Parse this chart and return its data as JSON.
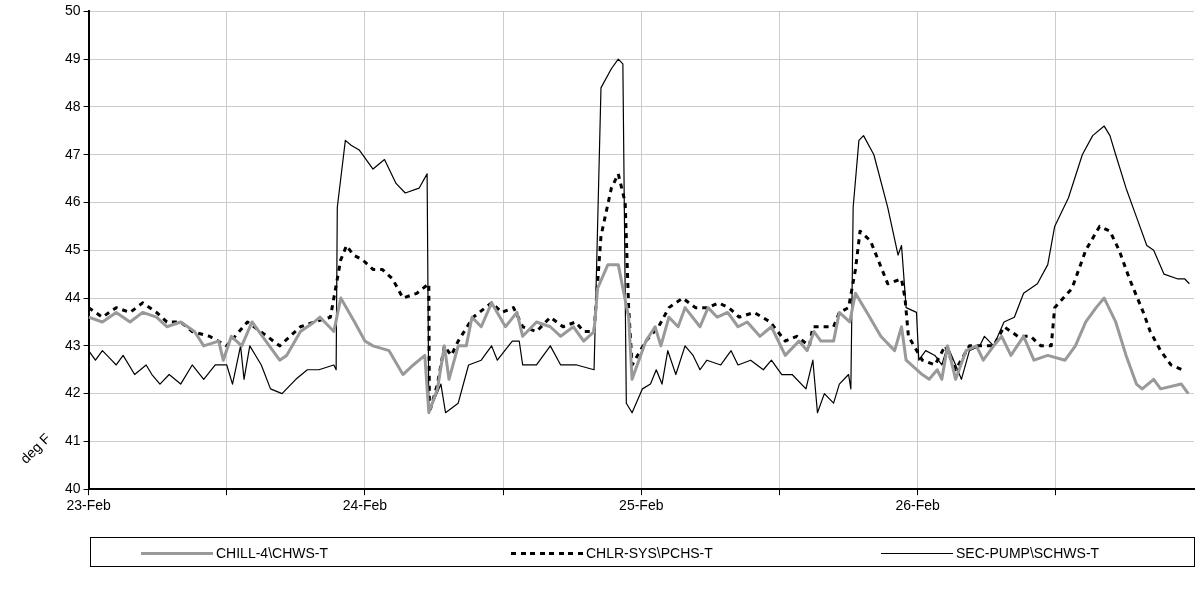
{
  "chart_data": {
    "type": "line",
    "ylabel": "deg F",
    "xlim": [
      "--02-23",
      "--02-27"
    ],
    "xticks": [
      {
        "value": "--02-23",
        "label": "23-Feb"
      },
      {
        "value": "--02-23T12:00",
        "label": null
      },
      {
        "value": "--02-24",
        "label": "24-Feb"
      },
      {
        "value": "--02-24T12:00",
        "label": null
      },
      {
        "value": "--02-25",
        "label": "25-Feb"
      },
      {
        "value": "--02-25T12:00",
        "label": null
      },
      {
        "value": "--02-26",
        "label": "26-Feb"
      },
      {
        "value": "--02-26T12:00",
        "label": null
      }
    ],
    "ylim": [
      40,
      50
    ],
    "yticks": [
      40,
      41,
      42,
      43,
      44,
      45,
      46,
      47,
      48,
      49,
      50
    ],
    "grid": true,
    "legend": "bottom",
    "marker": "none",
    "series": [
      {
        "name": "CHILL-4\\CHWS-T",
        "color": "#999999",
        "line_style": "solid",
        "x": [
          "--02-23T00:00",
          "--02-23T01:12",
          "--02-23T02:24",
          "--02-23T03:36",
          "--02-23T04:42",
          "--02-23T05:54",
          "--02-23T06:48",
          "--02-23T08:00",
          "--02-23T09:12",
          "--02-23T10:00",
          "--02-23T11:18",
          "--02-23T11:42",
          "--02-23T12:24",
          "--02-23T13:18",
          "--02-23T14:12",
          "--02-23T15:24",
          "--02-23T16:36",
          "--02-23T17:12",
          "--02-23T18:24",
          "--02-23T19:36",
          "--02-23T20:06",
          "--02-23T21:18",
          "--02-23T21:54",
          "--02-23T23:06",
          "--02-24T00:00",
          "--02-24T00:42",
          "--02-24T02:06",
          "--02-24T03:18",
          "--02-24T04:12",
          "--02-24T05:12",
          "--02-24T05:33",
          "--02-24T06:18",
          "--02-24T06:54",
          "--02-24T07:18",
          "--02-24T08:06",
          "--02-24T08:48",
          "--02-24T09:18",
          "--02-24T10:06",
          "--02-24T11:00",
          "--02-24T12:12",
          "--02-24T13:12",
          "--02-24T13:42",
          "--02-24T14:54",
          "--02-24T16:06",
          "--02-24T17:00",
          "--02-24T18:06",
          "--02-24T19:00",
          "--02-24T19:54",
          "--02-24T20:12",
          "--02-24T21:06",
          "--02-24T22:00",
          "--02-24T22:54",
          "--02-24T23:12",
          "--02-25T00:24",
          "--02-25T01:12",
          "--02-25T01:42",
          "--02-25T02:24",
          "--02-25T03:12",
          "--02-25T03:48",
          "--02-25T05:06",
          "--02-25T05:48",
          "--02-25T06:36",
          "--02-25T07:30",
          "--02-25T08:24",
          "--02-25T09:12",
          "--02-25T10:18",
          "--02-25T11:18",
          "--02-25T12:30",
          "--02-25T13:42",
          "--02-25T14:24",
          "--02-25T15:00",
          "--02-25T15:36",
          "--02-25T16:42",
          "--02-25T17:12",
          "--02-25T18:06",
          "--02-25T18:36",
          "--02-25T19:36",
          "--02-25T20:48",
          "--02-25T22:00",
          "--02-25T22:36",
          "--02-25T23:00",
          "--02-26T00:24",
          "--02-26T01:00",
          "--02-26T01:42",
          "--02-26T02:06",
          "--02-26T02:36",
          "--02-26T03:18",
          "--02-26T04:12",
          "--02-26T05:06",
          "--02-26T05:42",
          "--02-26T06:36",
          "--02-26T07:18",
          "--02-26T08:06",
          "--02-26T09:12",
          "--02-26T10:06",
          "--02-26T11:18",
          "--02-26T12:48",
          "--02-26T13:42",
          "--02-26T14:36",
          "--02-26T15:30",
          "--02-26T16:12",
          "--02-26T17:12",
          "--02-26T18:06",
          "--02-26T19:00",
          "--02-26T19:30",
          "--02-26T20:30",
          "--02-26T21:06",
          "--02-26T22:54",
          "--02-26T23:30"
        ],
        "values": [
          43.6,
          43.5,
          43.7,
          43.5,
          43.7,
          43.6,
          43.4,
          43.5,
          43.3,
          43.0,
          43.1,
          42.7,
          43.2,
          43.0,
          43.5,
          43.1,
          42.7,
          42.8,
          43.3,
          43.5,
          43.6,
          43.3,
          44.0,
          43.5,
          43.1,
          43.0,
          42.9,
          42.4,
          42.6,
          42.8,
          41.6,
          42.1,
          43.0,
          42.3,
          43.0,
          43.0,
          43.6,
          43.4,
          43.9,
          43.4,
          43.7,
          43.2,
          43.5,
          43.4,
          43.2,
          43.4,
          43.1,
          43.3,
          44.2,
          44.7,
          44.7,
          43.6,
          42.3,
          43.1,
          43.4,
          43.0,
          43.6,
          43.4,
          43.8,
          43.4,
          43.8,
          43.6,
          43.7,
          43.4,
          43.5,
          43.2,
          43.4,
          42.8,
          43.1,
          42.9,
          43.3,
          43.1,
          43.1,
          43.7,
          43.5,
          44.1,
          43.7,
          43.2,
          42.9,
          43.4,
          42.7,
          42.4,
          42.3,
          42.5,
          42.3,
          43.0,
          42.3,
          42.9,
          43.0,
          42.7,
          43.0,
          43.2,
          42.8,
          43.2,
          42.7,
          42.8,
          42.7,
          43.0,
          43.5,
          43.8,
          44.0,
          43.5,
          42.8,
          42.2,
          42.1,
          42.3,
          42.1,
          42.2,
          42.0
        ]
      },
      {
        "name": "CHLR-SYS\\PCHS-T",
        "color": "#000000",
        "line_style": "dashed",
        "x": [
          "--02-23T00:00",
          "--02-23T01:12",
          "--02-23T02:24",
          "--02-23T03:36",
          "--02-23T04:42",
          "--02-23T05:54",
          "--02-23T06:48",
          "--02-23T08:00",
          "--02-23T09:00",
          "--02-23T10:30",
          "--02-23T12:00",
          "--02-23T13:48",
          "--02-23T15:30",
          "--02-23T16:36",
          "--02-23T18:24",
          "--02-23T19:36",
          "--02-23T21:00",
          "--02-23T21:54",
          "--02-23T22:24",
          "--02-23T23:00",
          "--02-23T23:48",
          "--02-24T00:42",
          "--02-24T01:30",
          "--02-24T02:24",
          "--02-24T03:18",
          "--02-24T04:30",
          "--02-24T05:33",
          "--02-24T05:36",
          "--02-24T06:18",
          "--02-24T06:54",
          "--02-24T07:30",
          "--02-24T08:06",
          "--02-24T09:24",
          "--02-24T11:00",
          "--02-24T11:54",
          "--02-24T12:54",
          "--02-24T13:42",
          "--02-24T14:54",
          "--02-24T16:06",
          "--02-24T17:12",
          "--02-24T18:18",
          "--02-24T19:00",
          "--02-24T19:54",
          "--02-24T20:30",
          "--02-24T21:24",
          "--02-24T22:00",
          "--02-24T22:36",
          "--02-24T22:54",
          "--02-24T23:12",
          "--02-25T00:24",
          "--02-25T01:30",
          "--02-25T02:24",
          "--02-25T03:36",
          "--02-25T04:42",
          "--02-25T05:48",
          "--02-25T06:42",
          "--02-25T07:36",
          "--02-25T08:30",
          "--02-25T09:48",
          "--02-25T11:12",
          "--02-25T12:30",
          "--02-25T13:30",
          "--02-25T14:36",
          "--02-25T14:54",
          "--02-25T15:36",
          "--02-25T16:42",
          "--02-25T17:12",
          "--02-25T18:00",
          "--02-25T18:36",
          "--02-25T19:00",
          "--02-25T19:54",
          "--02-25T21:24",
          "--02-25T22:36",
          "--02-25T22:54",
          "--02-25T23:12",
          "--02-26T00:24",
          "--02-26T01:30",
          "--02-26T02:24",
          "--02-26T03:18",
          "--02-26T04:30",
          "--02-26T06:36",
          "--02-26T07:30",
          "--02-26T08:42",
          "--02-26T09:48",
          "--02-26T10:42",
          "--02-26T11:36",
          "--02-26T11:54",
          "--02-26T13:24",
          "--02-26T14:36",
          "--02-26T15:48",
          "--02-26T16:42",
          "--02-26T17:30",
          "--02-26T18:24",
          "--02-26T19:36",
          "--02-26T20:12",
          "--02-26T21:06",
          "--02-26T22:00",
          "--02-26T23:00"
        ],
        "values": [
          43.8,
          43.6,
          43.8,
          43.7,
          43.9,
          43.7,
          43.5,
          43.5,
          43.3,
          43.2,
          43.0,
          43.5,
          43.2,
          43.0,
          43.4,
          43.5,
          43.6,
          44.8,
          45.1,
          44.9,
          44.8,
          44.6,
          44.6,
          44.4,
          44.0,
          44.1,
          44.3,
          41.6,
          42.2,
          43.0,
          42.8,
          43.1,
          43.6,
          43.9,
          43.7,
          43.8,
          43.4,
          43.3,
          43.6,
          43.4,
          43.5,
          43.3,
          43.3,
          45.3,
          46.3,
          46.6,
          46.0,
          43.8,
          42.6,
          43.1,
          43.4,
          43.8,
          44.0,
          43.8,
          43.8,
          43.9,
          43.8,
          43.6,
          43.7,
          43.5,
          43.1,
          43.2,
          43.0,
          43.4,
          43.4,
          43.4,
          43.7,
          43.8,
          44.6,
          45.4,
          45.2,
          44.3,
          44.4,
          44.0,
          43.2,
          42.7,
          42.6,
          43.0,
          42.5,
          43.0,
          43.0,
          43.4,
          43.2,
          43.2,
          43.0,
          43.0,
          43.8,
          44.2,
          45.0,
          45.5,
          45.4,
          45.0,
          44.4,
          43.7,
          43.3,
          42.9,
          42.6,
          42.5
        ]
      },
      {
        "name": "SEC-PUMP\\SCHWS-T",
        "color": "#000000",
        "line_style": "solid",
        "x": [
          "--02-23T00:00",
          "--02-23T00:36",
          "--02-23T01:12",
          "--02-23T02:00",
          "--02-23T02:24",
          "--02-23T03:00",
          "--02-23T04:00",
          "--02-23T05:00",
          "--02-23T05:30",
          "--02-23T06:12",
          "--02-23T07:00",
          "--02-23T08:00",
          "--02-23T09:00",
          "--02-23T10:00",
          "--02-23T11:00",
          "--02-23T12:00",
          "--02-23T12:30",
          "--02-23T13:12",
          "--02-23T13:30",
          "--02-23T14:00",
          "--02-23T15:00",
          "--02-23T15:48",
          "--02-23T16:48",
          "--02-23T18:00",
          "--02-23T19:00",
          "--02-23T20:00",
          "--02-23T21:18",
          "--02-23T21:30",
          "--02-23T21:36",
          "--02-23T22:18",
          "--02-23T22:48",
          "--02-23T23:30",
          "--02-24T00:42",
          "--02-24T01:42",
          "--02-24T02:42",
          "--02-24T03:30",
          "--02-24T04:42",
          "--02-24T05:24",
          "--02-24T05:33",
          "--02-24T06:36",
          "--02-24T07:00",
          "--02-24T08:06",
          "--02-24T09:00",
          "--02-24T10:06",
          "--02-24T11:00",
          "--02-24T11:30",
          "--02-24T12:48",
          "--02-24T13:24",
          "--02-24T13:42",
          "--02-24T14:54",
          "--02-24T16:06",
          "--02-24T17:00",
          "--02-24T18:24",
          "--02-24T19:54",
          "--02-24T20:30",
          "--02-24T21:24",
          "--02-24T22:00",
          "--02-24T22:24",
          "--02-24T22:42",
          "--02-24T23:12",
          "--02-25T00:06",
          "--02-25T00:48",
          "--02-25T01:18",
          "--02-25T01:48",
          "--02-25T02:18",
          "--02-25T03:00",
          "--02-25T03:48",
          "--02-25T04:30",
          "--02-25T05:06",
          "--02-25T05:42",
          "--02-25T06:54",
          "--02-25T07:48",
          "--02-25T08:24",
          "--02-25T09:30",
          "--02-25T10:36",
          "--02-25T11:18",
          "--02-25T12:12",
          "--02-25T13:06",
          "--02-25T14:18",
          "--02-25T14:54",
          "--02-25T15:18",
          "--02-25T15:54",
          "--02-25T16:42",
          "--02-25T17:12",
          "--02-25T18:00",
          "--02-25T18:12",
          "--02-25T18:24",
          "--02-25T18:54",
          "--02-25T19:18",
          "--02-25T20:12",
          "--02-25T21:24",
          "--02-25T22:18",
          "--02-25T22:36",
          "--02-25T23:00",
          "--02-25T23:54",
          "--02-26T00:06",
          "--02-26T00:42",
          "--02-26T01:30",
          "--02-26T02:06",
          "--02-26T02:36",
          "--02-26T03:18",
          "--02-26T03:48",
          "--02-26T04:30",
          "--02-26T05:24",
          "--02-26T05:48",
          "--02-26T06:36",
          "--02-26T07:30",
          "--02-26T08:24",
          "--02-26T09:12",
          "--02-26T10:24",
          "--02-26T11:18",
          "--02-26T11:54",
          "--02-26T13:06",
          "--02-26T14:18",
          "--02-26T15:12",
          "--02-26T16:12",
          "--02-26T16:42",
          "--02-26T17:12",
          "--02-26T18:06",
          "--02-26T19:00",
          "--02-26T19:54",
          "--02-26T20:30",
          "--02-26T21:24",
          "--02-26T22:36",
          "--02-26T23:12",
          "--02-26T23:36"
        ],
        "values": [
          42.9,
          42.7,
          42.9,
          42.7,
          42.6,
          42.8,
          42.4,
          42.6,
          42.4,
          42.2,
          42.4,
          42.2,
          42.6,
          42.3,
          42.6,
          42.6,
          42.2,
          43.0,
          42.3,
          43.0,
          42.6,
          42.1,
          42.0,
          42.3,
          42.5,
          42.5,
          42.6,
          42.5,
          45.9,
          47.3,
          47.2,
          47.1,
          46.7,
          46.9,
          46.4,
          46.2,
          46.3,
          46.6,
          41.6,
          42.2,
          41.6,
          41.8,
          42.6,
          42.7,
          43.0,
          42.7,
          43.1,
          43.1,
          42.6,
          42.6,
          43.0,
          42.6,
          42.6,
          42.5,
          48.4,
          48.8,
          49.0,
          48.9,
          41.8,
          41.6,
          42.1,
          42.2,
          42.5,
          42.2,
          42.9,
          42.4,
          43.0,
          42.8,
          42.5,
          42.7,
          42.6,
          42.9,
          42.6,
          42.7,
          42.5,
          42.7,
          42.4,
          42.4,
          42.1,
          42.7,
          41.6,
          42.0,
          41.8,
          42.2,
          42.4,
          42.1,
          45.9,
          47.3,
          47.4,
          47.0,
          45.9,
          44.9,
          45.1,
          43.8,
          43.7,
          42.7,
          42.9,
          42.8,
          42.6,
          43.0,
          42.6,
          42.3,
          42.9,
          43.0,
          43.2,
          43.0,
          43.5,
          43.6,
          44.1,
          44.3,
          44.7,
          45.5,
          46.1,
          47.0,
          47.4,
          47.6,
          47.4,
          47.0,
          46.3,
          45.7,
          45.1,
          45.0,
          44.5,
          44.4,
          44.4,
          44.3
        ]
      }
    ]
  }
}
